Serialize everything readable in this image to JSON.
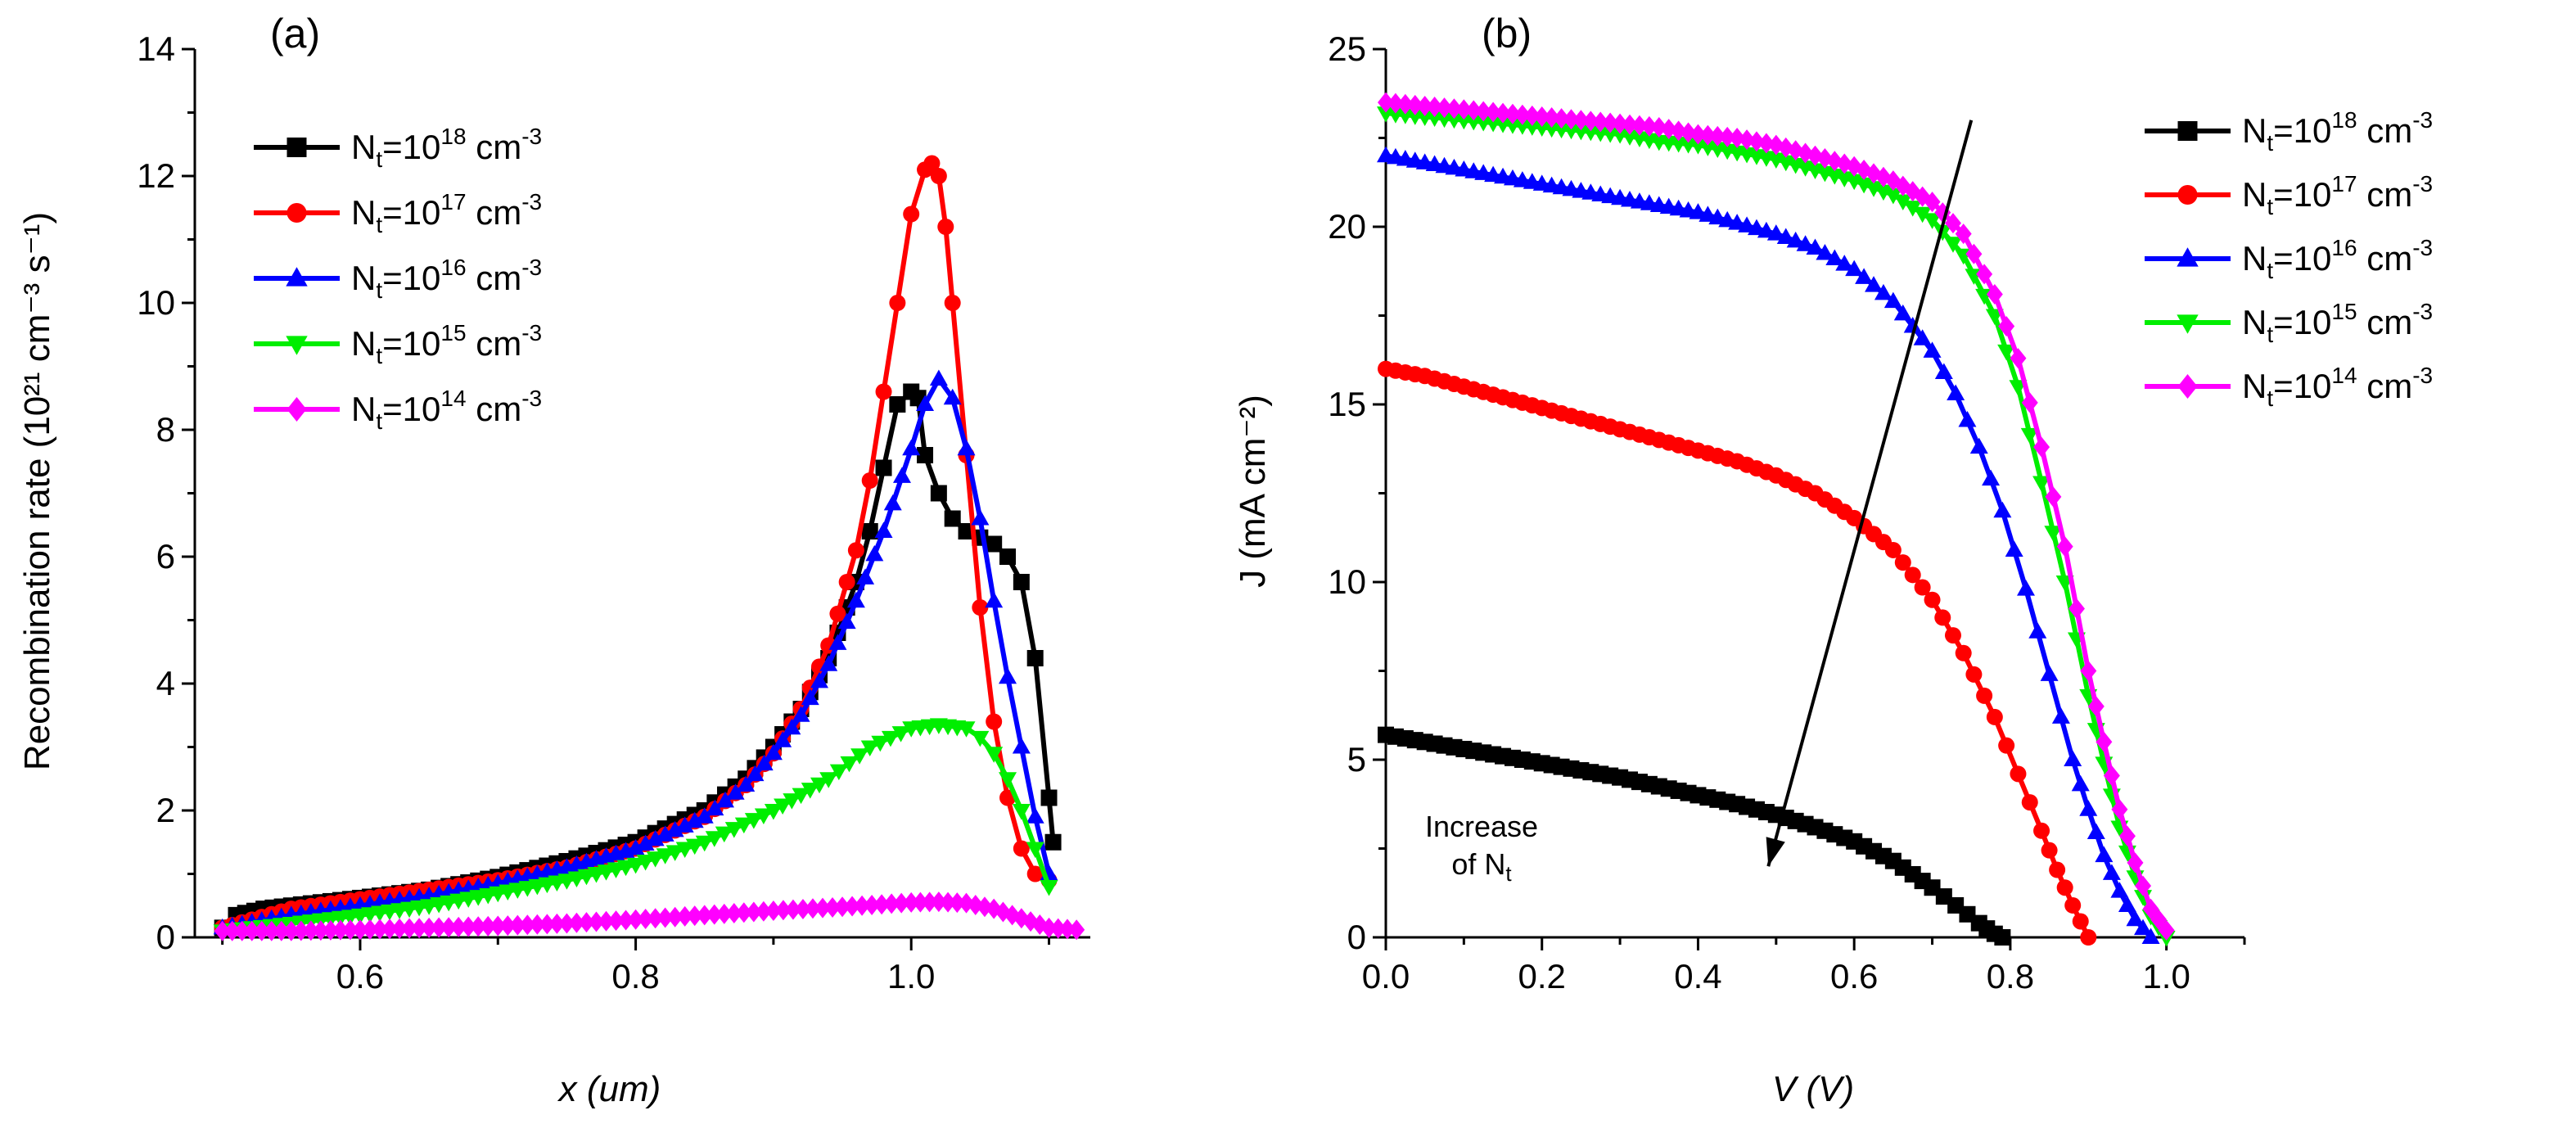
{
  "chart_data": [
    {
      "id": "a",
      "type": "line",
      "panel_label": "(a)",
      "xlabel": "x (um)",
      "ylabel": "Recombination rate (10²¹ cm⁻³ s⁻¹)",
      "xlim": [
        0.48,
        1.13
      ],
      "ylim": [
        0,
        14
      ],
      "xticks": [
        0.6,
        0.8,
        1.0
      ],
      "xtick_labels": [
        "0.6",
        "0.8",
        "1.0"
      ],
      "yticks": [
        0,
        2,
        4,
        6,
        8,
        10,
        12,
        14
      ],
      "ytick_labels": [
        "0",
        "2",
        "4",
        "6",
        "8",
        "10",
        "12",
        "14"
      ],
      "legend_position": "top-left",
      "series": [
        {
          "name": "Nt=10^18 cm^-3",
          "legend_base": "N",
          "legend_sub": "t",
          "legend_mid": "=10",
          "legend_sup": "18",
          "legend_unit": " cm",
          "legend_unit_sup": "-3",
          "color": "#000000",
          "marker": "square",
          "x": [
            0.5,
            0.51,
            0.53,
            0.55,
            0.6,
            0.65,
            0.7,
            0.75,
            0.8,
            0.85,
            0.88,
            0.9,
            0.92,
            0.94,
            0.96,
            0.97,
            0.98,
            0.99,
            1.0,
            1.005,
            1.01,
            1.02,
            1.03,
            1.04,
            1.05,
            1.06,
            1.07,
            1.08,
            1.09,
            1.1,
            1.103
          ],
          "y": [
            0.15,
            0.35,
            0.45,
            0.5,
            0.62,
            0.75,
            0.95,
            1.2,
            1.5,
            2.0,
            2.5,
            3.0,
            3.6,
            4.4,
            5.6,
            6.4,
            7.4,
            8.4,
            8.6,
            8.5,
            7.6,
            7.0,
            6.6,
            6.4,
            6.3,
            6.2,
            6.0,
            5.6,
            4.4,
            2.2,
            1.5
          ]
        },
        {
          "name": "Nt=10^17 cm^-3",
          "legend_base": "N",
          "legend_sub": "t",
          "legend_mid": "=10",
          "legend_sup": "17",
          "legend_unit": " cm",
          "legend_unit_sup": "-3",
          "color": "#ff0000",
          "marker": "circle",
          "x": [
            0.5,
            0.55,
            0.6,
            0.65,
            0.7,
            0.75,
            0.8,
            0.85,
            0.88,
            0.9,
            0.92,
            0.94,
            0.96,
            0.97,
            0.98,
            0.99,
            1.0,
            1.01,
            1.015,
            1.02,
            1.025,
            1.03,
            1.04,
            1.05,
            1.06,
            1.07,
            1.08,
            1.09,
            1.1
          ],
          "y": [
            0.15,
            0.45,
            0.6,
            0.75,
            0.9,
            1.1,
            1.4,
            1.9,
            2.4,
            2.9,
            3.6,
            4.6,
            6.1,
            7.2,
            8.6,
            10.0,
            11.4,
            12.1,
            12.2,
            12.0,
            11.2,
            10.0,
            7.6,
            5.2,
            3.4,
            2.2,
            1.4,
            1.0,
            0.9
          ]
        },
        {
          "name": "Nt=10^16 cm^-3",
          "legend_base": "N",
          "legend_sub": "t",
          "legend_mid": "=10",
          "legend_sup": "16",
          "legend_unit": " cm",
          "legend_unit_sup": "-3",
          "color": "#0000ff",
          "marker": "triangle",
          "x": [
            0.5,
            0.55,
            0.6,
            0.65,
            0.7,
            0.75,
            0.8,
            0.85,
            0.88,
            0.9,
            0.92,
            0.94,
            0.96,
            0.98,
            1.0,
            1.01,
            1.02,
            1.03,
            1.04,
            1.05,
            1.06,
            1.07,
            1.08,
            1.09,
            1.1
          ],
          "y": [
            0.15,
            0.35,
            0.5,
            0.65,
            0.85,
            1.1,
            1.4,
            1.9,
            2.4,
            2.9,
            3.5,
            4.3,
            5.3,
            6.4,
            7.7,
            8.4,
            8.8,
            8.5,
            7.7,
            6.6,
            5.3,
            4.1,
            3.0,
            1.9,
            1.0
          ]
        },
        {
          "name": "Nt=10^15 cm^-3",
          "legend_base": "N",
          "legend_sub": "t",
          "legend_mid": "=10",
          "legend_sup": "15",
          "legend_unit": " cm",
          "legend_unit_sup": "-3",
          "color": "#00ee00",
          "marker": "triangle-down",
          "x": [
            0.5,
            0.55,
            0.6,
            0.65,
            0.7,
            0.75,
            0.8,
            0.85,
            0.9,
            0.94,
            0.97,
            1.0,
            1.02,
            1.04,
            1.05,
            1.06,
            1.07,
            1.08,
            1.09,
            1.1
          ],
          "y": [
            0.1,
            0.22,
            0.35,
            0.5,
            0.7,
            0.9,
            1.15,
            1.5,
            2.0,
            2.5,
            3.0,
            3.3,
            3.35,
            3.3,
            3.15,
            2.9,
            2.5,
            2.0,
            1.4,
            0.8
          ]
        },
        {
          "name": "Nt=10^14 cm^-3",
          "legend_base": "N",
          "legend_sub": "t",
          "legend_mid": "=10",
          "legend_sup": "14",
          "legend_unit": " cm",
          "legend_unit_sup": "-3",
          "color": "#ff00ff",
          "marker": "diamond",
          "x": [
            0.5,
            0.55,
            0.6,
            0.65,
            0.7,
            0.75,
            0.8,
            0.85,
            0.9,
            0.95,
            1.0,
            1.02,
            1.04,
            1.06,
            1.08,
            1.1,
            1.12
          ],
          "y": [
            0.1,
            0.1,
            0.12,
            0.15,
            0.18,
            0.22,
            0.28,
            0.35,
            0.42,
            0.48,
            0.55,
            0.56,
            0.54,
            0.45,
            0.3,
            0.15,
            0.12
          ]
        }
      ]
    },
    {
      "id": "b",
      "type": "line",
      "panel_label": "(b)",
      "xlabel": "V (V)",
      "ylabel": "J (mA cm⁻²)",
      "xlim": [
        0,
        1.1
      ],
      "ylim": [
        0,
        25
      ],
      "xticks": [
        0.0,
        0.2,
        0.4,
        0.6,
        0.8,
        1.0
      ],
      "xtick_labels": [
        "0.0",
        "0.2",
        "0.4",
        "0.6",
        "0.8",
        "1.0"
      ],
      "yticks": [
        0,
        5,
        10,
        15,
        20,
        25
      ],
      "ytick_labels": [
        "0",
        "5",
        "10",
        "15",
        "20",
        "25"
      ],
      "legend_position": "top-right",
      "annotation": {
        "line1": "Increase",
        "line2_base": "of N",
        "line2_sub": "t",
        "arrow_from": [
          0.75,
          23
        ],
        "arrow_to": [
          0.49,
          2.0
        ]
      },
      "series": [
        {
          "name": "Nt=10^18 cm^-3",
          "legend_base": "N",
          "legend_sub": "t",
          "legend_mid": "=10",
          "legend_sup": "18",
          "legend_unit": " cm",
          "legend_unit_sup": "-3",
          "color": "#000000",
          "marker": "square",
          "x": [
            0.0,
            0.05,
            0.1,
            0.15,
            0.2,
            0.25,
            0.3,
            0.35,
            0.4,
            0.45,
            0.5,
            0.55,
            0.6,
            0.65,
            0.7,
            0.73,
            0.76,
            0.78,
            0.79
          ],
          "y": [
            5.7,
            5.5,
            5.3,
            5.1,
            4.9,
            4.7,
            4.5,
            4.25,
            4.0,
            3.75,
            3.45,
            3.1,
            2.7,
            2.15,
            1.4,
            0.9,
            0.4,
            0.1,
            0.0
          ]
        },
        {
          "name": "Nt=10^17 cm^-3",
          "legend_base": "N",
          "legend_sub": "t",
          "legend_mid": "=10",
          "legend_sup": "17",
          "legend_unit": " cm",
          "legend_unit_sup": "-3",
          "color": "#ff0000",
          "marker": "circle",
          "x": [
            0.0,
            0.05,
            0.1,
            0.15,
            0.2,
            0.25,
            0.3,
            0.35,
            0.4,
            0.45,
            0.5,
            0.55,
            0.6,
            0.65,
            0.7,
            0.74,
            0.78,
            0.81,
            0.84,
            0.86,
            0.88,
            0.9
          ],
          "y": [
            16.0,
            15.8,
            15.5,
            15.2,
            14.9,
            14.6,
            14.3,
            14.0,
            13.7,
            13.4,
            13.0,
            12.5,
            11.8,
            10.9,
            9.5,
            8.0,
            6.2,
            4.6,
            3.0,
            1.9,
            0.9,
            0.0
          ]
        },
        {
          "name": "Nt=10^16 cm^-3",
          "legend_base": "N",
          "legend_sub": "t",
          "legend_mid": "=10",
          "legend_sup": "16",
          "legend_unit": " cm",
          "legend_unit_sup": "-3",
          "color": "#0000ff",
          "marker": "triangle",
          "x": [
            0.0,
            0.05,
            0.1,
            0.15,
            0.2,
            0.25,
            0.3,
            0.35,
            0.4,
            0.45,
            0.5,
            0.55,
            0.6,
            0.65,
            0.7,
            0.73,
            0.76,
            0.79,
            0.82,
            0.85,
            0.88,
            0.9,
            0.92,
            0.94,
            0.96,
            0.98
          ],
          "y": [
            22.0,
            21.8,
            21.6,
            21.4,
            21.2,
            21.0,
            20.8,
            20.6,
            20.4,
            20.1,
            19.8,
            19.4,
            18.8,
            17.9,
            16.5,
            15.3,
            13.8,
            12.0,
            9.8,
            7.4,
            5.0,
            3.6,
            2.3,
            1.3,
            0.5,
            0.0
          ]
        },
        {
          "name": "Nt=10^15 cm^-3",
          "legend_base": "N",
          "legend_sub": "t",
          "legend_mid": "=10",
          "legend_sup": "15",
          "legend_unit": " cm",
          "legend_unit_sup": "-3",
          "color": "#00ee00",
          "marker": "triangle-down",
          "x": [
            0.0,
            0.05,
            0.1,
            0.15,
            0.2,
            0.25,
            0.3,
            0.35,
            0.4,
            0.45,
            0.5,
            0.55,
            0.6,
            0.65,
            0.7,
            0.74,
            0.78,
            0.81,
            0.84,
            0.87,
            0.9,
            0.92,
            0.94,
            0.96,
            0.98,
            1.0
          ],
          "y": [
            23.2,
            23.1,
            23.0,
            22.9,
            22.8,
            22.7,
            22.6,
            22.4,
            22.3,
            22.1,
            21.9,
            21.6,
            21.3,
            20.9,
            20.2,
            19.2,
            17.5,
            15.5,
            12.8,
            10.0,
            6.8,
            4.9,
            3.1,
            1.7,
            0.6,
            0.0
          ]
        },
        {
          "name": "Nt=10^14 cm^-3",
          "legend_base": "N",
          "legend_sub": "t",
          "legend_mid": "=10",
          "legend_sup": "14",
          "legend_unit": " cm",
          "legend_unit_sup": "-3",
          "color": "#ff00ff",
          "marker": "diamond",
          "x": [
            0.0,
            0.05,
            0.1,
            0.15,
            0.2,
            0.25,
            0.3,
            0.35,
            0.4,
            0.45,
            0.5,
            0.55,
            0.6,
            0.65,
            0.7,
            0.74,
            0.78,
            0.81,
            0.84,
            0.87,
            0.9,
            0.92,
            0.94,
            0.96,
            0.98,
            1.0
          ],
          "y": [
            23.5,
            23.4,
            23.3,
            23.2,
            23.1,
            23.0,
            22.9,
            22.8,
            22.6,
            22.5,
            22.3,
            22.0,
            21.7,
            21.3,
            20.7,
            19.8,
            18.1,
            16.3,
            13.8,
            11.0,
            7.5,
            5.5,
            3.6,
            2.1,
            0.8,
            0.2
          ]
        }
      ]
    }
  ]
}
